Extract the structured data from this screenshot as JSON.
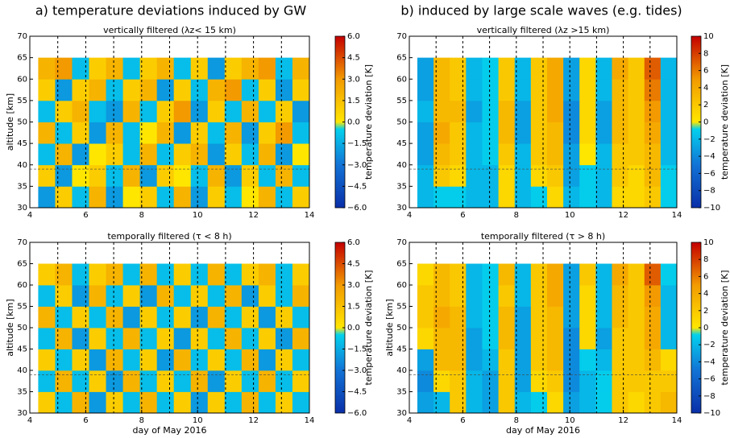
{
  "headers": [
    "a) temperature deviations induced by GW",
    "b) induced by large scale waves (e.g. tides)"
  ],
  "chart_data": [
    {
      "type": "heatmap",
      "title": "vertically filtered (λz< 15 km)",
      "ylabel": "altitude [km]",
      "colorbar_label": "temperature deviation [K]",
      "xlim": [
        4,
        14
      ],
      "ylim": [
        30,
        70
      ],
      "xticks": [
        4,
        6,
        8,
        10,
        12,
        14
      ],
      "yticks": [
        30,
        35,
        40,
        45,
        50,
        55,
        60,
        65,
        70
      ],
      "x_extent": [
        4.3,
        14
      ],
      "y_extent": [
        30,
        65
      ],
      "vlines": [
        5,
        6,
        7,
        8,
        9,
        10,
        11,
        12,
        13
      ],
      "hline": 39,
      "clim": [
        -6,
        6
      ],
      "cticks": [
        {
          "value": -6,
          "label": "−6.0"
        },
        {
          "value": -4.5,
          "label": "−4.5"
        },
        {
          "value": -3,
          "label": "−3.0"
        },
        {
          "value": -1.5,
          "label": "−1.5"
        },
        {
          "value": 0,
          "label": "0.0"
        },
        {
          "value": 1.5,
          "label": "1.5"
        },
        {
          "value": 3,
          "label": "3.0"
        },
        {
          "value": 4.5,
          "label": "4.5"
        },
        {
          "value": 6,
          "label": "6.0"
        }
      ],
      "colormap": {
        "below": [
          "#0a2fa8",
          "#1273d6",
          "#00e4f2"
        ],
        "above": [
          "#ffe600",
          "#f29a00",
          "#c40000"
        ]
      },
      "z": [
        [
          -2,
          1,
          -1,
          2,
          -2,
          0,
          1,
          -1,
          2,
          -2,
          1,
          -1,
          0,
          2,
          -1,
          1
        ],
        [
          1,
          -2,
          0,
          1,
          -1,
          2,
          -2,
          1,
          0,
          -1,
          2,
          -2,
          1,
          -1,
          2,
          -1
        ],
        [
          -1,
          2,
          -2,
          0,
          1,
          -1,
          2,
          -1,
          1,
          2,
          -2,
          1,
          -1,
          2,
          -2,
          0
        ],
        [
          2,
          -1,
          1,
          -2,
          2,
          -1,
          0,
          2,
          -2,
          1,
          -1,
          2,
          -2,
          1,
          3,
          -1
        ],
        [
          -1,
          1,
          2,
          -1,
          -2,
          2,
          -1,
          1,
          3,
          -2,
          1,
          -1,
          2,
          -1,
          1,
          -2
        ],
        [
          1,
          -2,
          1,
          2,
          -1,
          1,
          2,
          -2,
          1,
          -1,
          2,
          3,
          -1,
          1,
          -2,
          1
        ],
        [
          2,
          3,
          -1,
          1,
          2,
          -1,
          1,
          2,
          -1,
          1,
          -2,
          1,
          2,
          3,
          -1,
          2
        ]
      ]
    },
    {
      "type": "heatmap",
      "title": "vertically filtered (λz >15 km)",
      "colorbar_label": "temperature deviation [K]",
      "xlim": [
        4,
        14
      ],
      "ylim": [
        30,
        70
      ],
      "xticks": [
        4,
        6,
        8,
        10,
        12,
        14
      ],
      "yticks": [
        30,
        35,
        40,
        45,
        50,
        55,
        60,
        65,
        70
      ],
      "x_extent": [
        4.3,
        14
      ],
      "y_extent": [
        30,
        65
      ],
      "vlines": [
        5,
        6,
        7,
        8,
        9,
        10,
        11,
        12,
        13
      ],
      "hline": 39,
      "clim": [
        -10,
        10
      ],
      "cticks": [
        {
          "value": -10,
          "label": "−10"
        },
        {
          "value": -8,
          "label": "−8"
        },
        {
          "value": -6,
          "label": "−6"
        },
        {
          "value": -4,
          "label": "−4"
        },
        {
          "value": -2,
          "label": "−2"
        },
        0,
        2,
        4,
        6,
        8,
        10
      ],
      "colormap": {
        "below": [
          "#0a2fa8",
          "#1273d6",
          "#00e4f2"
        ],
        "above": [
          "#ffe600",
          "#f29a00",
          "#c40000"
        ]
      },
      "z": [
        [
          -2,
          -1,
          -1,
          -2,
          -2,
          1,
          -2,
          -1,
          1,
          -2,
          -1,
          -2,
          1,
          1,
          2,
          -1
        ],
        [
          -2,
          2,
          1,
          -2,
          -2,
          1,
          -2,
          1,
          2,
          -3,
          -1,
          -2,
          2,
          1,
          3,
          -1
        ],
        [
          -3,
          3,
          2,
          -2,
          -1,
          2,
          -2,
          2,
          3,
          -3,
          0,
          -2,
          2,
          2,
          3,
          -2
        ],
        [
          -3,
          4,
          2,
          -2,
          -1,
          3,
          -3,
          2,
          3,
          -4,
          1,
          -3,
          3,
          2,
          4,
          -2
        ],
        [
          -2,
          3,
          3,
          -3,
          -1,
          3,
          -3,
          2,
          4,
          -4,
          1,
          -3,
          3,
          2,
          5,
          -2
        ],
        [
          -3,
          3,
          2,
          -2,
          -1,
          2,
          -2,
          2,
          4,
          -3,
          1,
          -2,
          3,
          2,
          6,
          -2
        ],
        [
          -3,
          3,
          2,
          -2,
          -1,
          2,
          -2,
          2,
          4,
          -3,
          1,
          -2,
          4,
          2,
          7,
          -2
        ]
      ]
    },
    {
      "type": "heatmap",
      "title": "temporally filtered (τ < 8 h)",
      "xlabel": "day of May 2016",
      "ylabel": "altitude [km]",
      "colorbar_label": "temperature deviation [K]",
      "xlim": [
        4,
        14
      ],
      "ylim": [
        30,
        70
      ],
      "xticks": [
        4,
        6,
        8,
        10,
        12,
        14
      ],
      "yticks": [
        30,
        35,
        40,
        45,
        50,
        55,
        60,
        65,
        70
      ],
      "x_extent": [
        4.3,
        14
      ],
      "y_extent": [
        30,
        65
      ],
      "vlines": [
        5,
        6,
        7,
        8,
        9,
        10,
        11,
        12,
        13
      ],
      "hline": 39,
      "clim": [
        -6,
        6
      ],
      "cticks": [
        {
          "value": -6,
          "label": "−6.0"
        },
        {
          "value": -4.5,
          "label": "−4.5"
        },
        {
          "value": -3,
          "label": "−3.0"
        },
        {
          "value": -1.5,
          "label": "−1.5"
        },
        {
          "value": 0,
          "label": "0.0"
        },
        {
          "value": 1.5,
          "label": "1.5"
        },
        {
          "value": 3,
          "label": "3.0"
        },
        {
          "value": 4.5,
          "label": "4.5"
        },
        {
          "value": 6,
          "label": "6.0"
        }
      ],
      "colormap": {
        "below": [
          "#0a2fa8",
          "#1273d6",
          "#00e4f2"
        ],
        "above": [
          "#ffe600",
          "#f29a00",
          "#c40000"
        ]
      },
      "z": [
        [
          1,
          -1,
          2,
          -2,
          1,
          -1,
          2,
          -1,
          1,
          -2,
          1,
          -1,
          2,
          -1,
          1,
          -1
        ],
        [
          -1,
          2,
          -1,
          1,
          -2,
          2,
          -1,
          1,
          -1,
          2,
          -2,
          1,
          -1,
          2,
          -1,
          1
        ],
        [
          1,
          -1,
          1,
          -2,
          2,
          -1,
          1,
          -2,
          2,
          -1,
          1,
          -1,
          2,
          -2,
          1,
          -1
        ],
        [
          -1,
          2,
          -2,
          1,
          -1,
          2,
          -1,
          1,
          -2,
          1,
          -1,
          2,
          -1,
          1,
          -2,
          2
        ],
        [
          2,
          -1,
          1,
          -1,
          2,
          -2,
          1,
          -1,
          1,
          -2,
          2,
          -1,
          1,
          -2,
          1,
          -1
        ],
        [
          -1,
          1,
          -2,
          2,
          -1,
          1,
          -2,
          2,
          -1,
          1,
          -1,
          2,
          -2,
          1,
          -1,
          2
        ],
        [
          1,
          2,
          -1,
          1,
          2,
          -1,
          2,
          -1,
          1,
          -1,
          2,
          -1,
          1,
          2,
          -1,
          1
        ]
      ]
    },
    {
      "type": "heatmap",
      "title": "temporally filtered (τ > 8 h)",
      "xlabel": "day of May 2016",
      "ylabel": "altitude [km]",
      "colorbar_label": "temperature deviation [K]",
      "xlim": [
        4,
        14
      ],
      "ylim": [
        30,
        70
      ],
      "xticks": [
        4,
        6,
        8,
        10,
        12,
        14
      ],
      "yticks": [
        30,
        35,
        40,
        45,
        50,
        55,
        60,
        65,
        70
      ],
      "x_extent": [
        4.3,
        14
      ],
      "y_extent": [
        30,
        65
      ],
      "vlines": [
        5,
        6,
        7,
        8,
        9,
        10,
        11,
        12,
        13
      ],
      "hline": 39,
      "clim": [
        -10,
        10
      ],
      "cticks": [
        {
          "value": -10,
          "label": "−10"
        },
        {
          "value": -8,
          "label": "−8"
        },
        {
          "value": -6,
          "label": "−6"
        },
        {
          "value": -4,
          "label": "−4"
        },
        {
          "value": -2,
          "label": "−2"
        },
        0,
        2,
        4,
        6,
        8,
        10
      ],
      "colormap": {
        "below": [
          "#0a2fa8",
          "#1273d6",
          "#00e4f2"
        ],
        "above": [
          "#ffe600",
          "#f29a00",
          "#c40000"
        ]
      },
      "z": [
        [
          -3,
          -2,
          2,
          -2,
          -3,
          2,
          -2,
          -1,
          1,
          -3,
          -2,
          -1,
          2,
          1,
          2,
          3
        ],
        [
          -4,
          1,
          2,
          -2,
          -3,
          2,
          -3,
          1,
          2,
          -4,
          -2,
          -1,
          2,
          2,
          2,
          2
        ],
        [
          -3,
          3,
          3,
          -3,
          -2,
          2,
          -3,
          2,
          3,
          -4,
          -1,
          -2,
          2,
          2,
          3,
          1
        ],
        [
          1,
          3,
          3,
          -3,
          -1,
          3,
          -3,
          2,
          3,
          -4,
          1,
          -3,
          2,
          2,
          4,
          -2
        ],
        [
          2,
          4,
          3,
          -2,
          -1,
          3,
          -3,
          2,
          3,
          -3,
          1,
          -2,
          3,
          2,
          4,
          -2
        ],
        [
          2,
          3,
          2,
          -2,
          -1,
          2,
          -2,
          2,
          4,
          -3,
          1,
          -2,
          3,
          2,
          5,
          -2
        ],
        [
          1,
          3,
          2,
          -2,
          -1,
          3,
          -2,
          2,
          4,
          -3,
          2,
          -2,
          4,
          2,
          7,
          -1
        ]
      ]
    }
  ]
}
